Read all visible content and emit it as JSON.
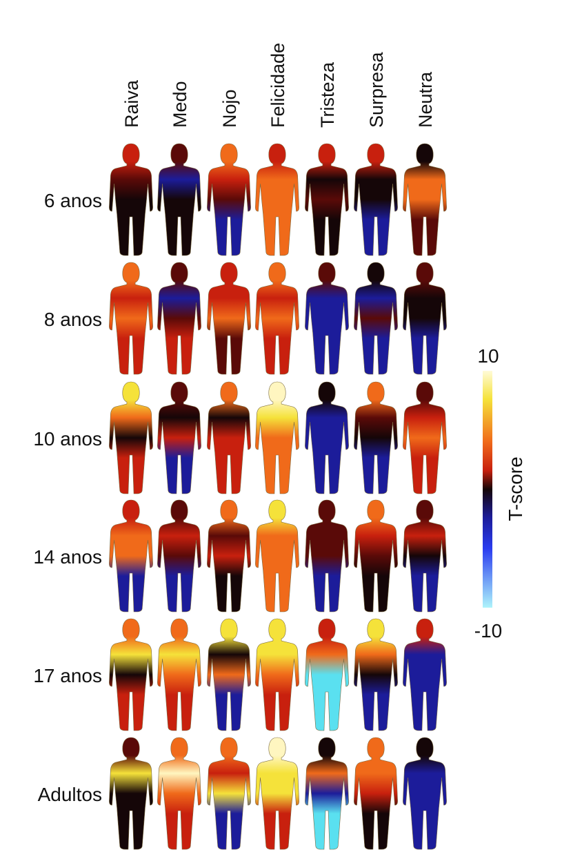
{
  "columns": [
    "Raiva",
    "Medo",
    "Nojo",
    "Felicidade",
    "Tristeza",
    "Surpresa",
    "Neutra"
  ],
  "rows": [
    "6 anos",
    "8 anos",
    "10 anos",
    "14 anos",
    "17 anos",
    "Adultos"
  ],
  "colorbar": {
    "max_label": "10",
    "min_label": "-10",
    "title": "T-score"
  }
}
